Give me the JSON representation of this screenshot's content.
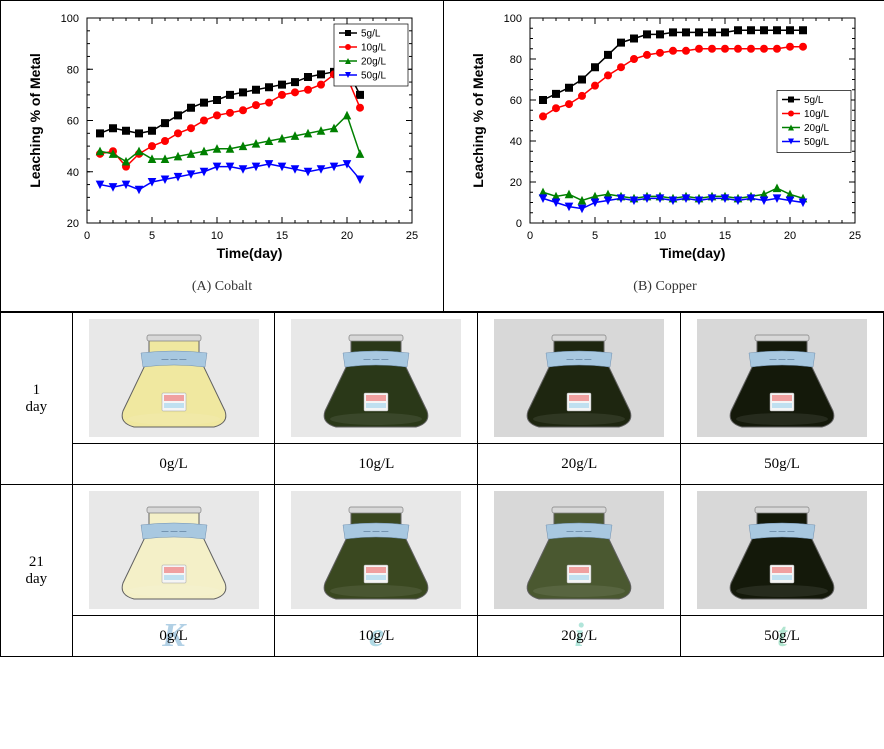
{
  "charts": {
    "cobalt": {
      "type": "line",
      "caption": "(A) Cobalt",
      "xlabel": "Time(day)",
      "ylabel": "Leaching % of Metal",
      "label_fontsize": 14,
      "title_fontsize": 14,
      "xlim": [
        0,
        25
      ],
      "ylim": [
        20,
        100
      ],
      "xtick_step": 5,
      "ytick_step": 20,
      "tick_fontsize": 11,
      "minor_ticks": true,
      "background_color": "#ffffff",
      "legend_position": "top-right",
      "legend_fontsize": 10,
      "series": [
        {
          "label": "5g/L",
          "color": "#000000",
          "marker": "square",
          "x": [
            1,
            2,
            3,
            4,
            5,
            6,
            7,
            8,
            9,
            10,
            11,
            12,
            13,
            14,
            15,
            16,
            17,
            18,
            19,
            20,
            21
          ],
          "y": [
            55,
            57,
            56,
            55,
            56,
            59,
            62,
            65,
            67,
            68,
            70,
            71,
            72,
            73,
            74,
            75,
            77,
            78,
            79,
            80,
            70
          ]
        },
        {
          "label": "10g/L",
          "color": "#ff0000",
          "marker": "circle",
          "x": [
            1,
            2,
            3,
            4,
            5,
            6,
            7,
            8,
            9,
            10,
            11,
            12,
            13,
            14,
            15,
            16,
            17,
            18,
            19,
            20,
            21
          ],
          "y": [
            47,
            48,
            42,
            47,
            50,
            52,
            55,
            57,
            60,
            62,
            63,
            64,
            66,
            67,
            70,
            71,
            72,
            74,
            78,
            77,
            65
          ]
        },
        {
          "label": "20g/L",
          "color": "#008000",
          "marker": "triangle",
          "x": [
            1,
            2,
            3,
            4,
            5,
            6,
            7,
            8,
            9,
            10,
            11,
            12,
            13,
            14,
            15,
            16,
            17,
            18,
            19,
            20,
            21
          ],
          "y": [
            48,
            47,
            44,
            48,
            45,
            45,
            46,
            47,
            48,
            49,
            49,
            50,
            51,
            52,
            53,
            54,
            55,
            56,
            57,
            62,
            47
          ]
        },
        {
          "label": "50g/L",
          "color": "#0000ff",
          "marker": "tridown",
          "x": [
            1,
            2,
            3,
            4,
            5,
            6,
            7,
            8,
            9,
            10,
            11,
            12,
            13,
            14,
            15,
            16,
            17,
            18,
            19,
            20,
            21
          ],
          "y": [
            35,
            34,
            35,
            33,
            36,
            37,
            38,
            39,
            40,
            42,
            42,
            41,
            42,
            43,
            42,
            41,
            40,
            41,
            42,
            43,
            37
          ]
        }
      ]
    },
    "copper": {
      "type": "line",
      "caption": "(B) Copper",
      "xlabel": "Time(day)",
      "ylabel": "Leaching % of Metal",
      "label_fontsize": 14,
      "title_fontsize": 14,
      "xlim": [
        0,
        25
      ],
      "ylim": [
        0,
        100
      ],
      "xtick_step": 5,
      "ytick_step": 20,
      "tick_fontsize": 11,
      "minor_ticks": true,
      "background_color": "#ffffff",
      "legend_position": "middle-right",
      "legend_fontsize": 10,
      "series": [
        {
          "label": "5g/L",
          "color": "#000000",
          "marker": "square",
          "x": [
            1,
            2,
            3,
            4,
            5,
            6,
            7,
            8,
            9,
            10,
            11,
            12,
            13,
            14,
            15,
            16,
            17,
            18,
            19,
            20,
            21
          ],
          "y": [
            60,
            63,
            66,
            70,
            76,
            82,
            88,
            90,
            92,
            92,
            93,
            93,
            93,
            93,
            93,
            94,
            94,
            94,
            94,
            94,
            94
          ]
        },
        {
          "label": "10g/L",
          "color": "#ff0000",
          "marker": "circle",
          "x": [
            1,
            2,
            3,
            4,
            5,
            6,
            7,
            8,
            9,
            10,
            11,
            12,
            13,
            14,
            15,
            16,
            17,
            18,
            19,
            20,
            21
          ],
          "y": [
            52,
            56,
            58,
            62,
            67,
            72,
            76,
            80,
            82,
            83,
            84,
            84,
            85,
            85,
            85,
            85,
            85,
            85,
            85,
            86,
            86
          ]
        },
        {
          "label": "20g/L",
          "color": "#008000",
          "marker": "triangle",
          "x": [
            1,
            2,
            3,
            4,
            5,
            6,
            7,
            8,
            9,
            10,
            11,
            12,
            13,
            14,
            15,
            16,
            17,
            18,
            19,
            20,
            21
          ],
          "y": [
            15,
            13,
            14,
            11,
            13,
            14,
            13,
            12,
            13,
            13,
            12,
            13,
            12,
            13,
            13,
            12,
            13,
            14,
            17,
            14,
            12
          ]
        },
        {
          "label": "50g/L",
          "color": "#0000ff",
          "marker": "tridown",
          "x": [
            1,
            2,
            3,
            4,
            5,
            6,
            7,
            8,
            9,
            10,
            11,
            12,
            13,
            14,
            15,
            16,
            17,
            18,
            19,
            20,
            21
          ],
          "y": [
            12,
            10,
            8,
            7,
            10,
            11,
            12,
            11,
            12,
            12,
            11,
            12,
            11,
            12,
            12,
            11,
            12,
            11,
            12,
            11,
            10
          ]
        }
      ]
    }
  },
  "flask_table": {
    "row_labels": [
      "1\nday",
      "21\nday"
    ],
    "columns": [
      "0g/L",
      "10g/L",
      "20g/L",
      "50g/L"
    ],
    "flask_colors": {
      "bg_photo": "#e8e8e8",
      "bg_photo_dark": "#d8d8d8",
      "label_band": "#a8c8e0",
      "label_text": "#4a4a4a",
      "small_label": "#f5f5f5",
      "row1": [
        "#f0e8a0",
        "#2a3818",
        "#1e2610",
        "#14190a"
      ],
      "row2": [
        "#f4f0c8",
        "#3a4820",
        "#4a5830",
        "#14190a"
      ]
    }
  },
  "watermark": {
    "text": "KEIT",
    "color_gradient": [
      "#0066aa",
      "#00aa66"
    ],
    "opacity": 0.3
  }
}
